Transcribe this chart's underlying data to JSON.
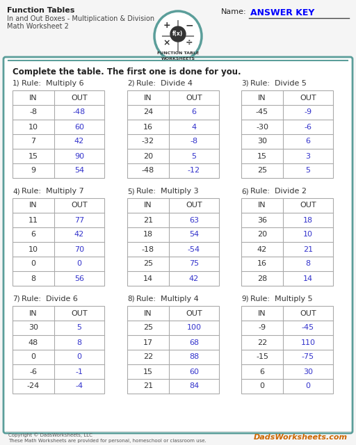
{
  "title_line1": "Function Tables",
  "title_line2": "In and Out Boxes - Multiplication & Division",
  "title_line3": "Math Worksheet 2",
  "name_label": "Name:",
  "answer_key": "ANSWER KEY",
  "instruction": "Complete the table. The first one is done for you.",
  "bg_color": "#f5f5f5",
  "border_color": "#5b9e9a",
  "tables": [
    {
      "num": "1)",
      "rule": "Rule:  Multiply 6",
      "in_vals": [
        "-8",
        "10",
        "7",
        "15",
        "9"
      ],
      "out_vals": [
        "-48",
        "60",
        "42",
        "90",
        "54"
      ],
      "out_colors": [
        "#3333cc",
        "#3333cc",
        "#3333cc",
        "#3333cc",
        "#3333cc"
      ]
    },
    {
      "num": "2)",
      "rule": "Rule:  Divide 4",
      "in_vals": [
        "24",
        "16",
        "-32",
        "20",
        "-48"
      ],
      "out_vals": [
        "6",
        "4",
        "-8",
        "5",
        "-12"
      ],
      "out_colors": [
        "#3333cc",
        "#3333cc",
        "#3333cc",
        "#3333cc",
        "#3333cc"
      ]
    },
    {
      "num": "3)",
      "rule": "Rule:  Divide 5",
      "in_vals": [
        "-45",
        "-30",
        "30",
        "15",
        "25"
      ],
      "out_vals": [
        "-9",
        "-6",
        "6",
        "3",
        "5"
      ],
      "out_colors": [
        "#3333cc",
        "#3333cc",
        "#3333cc",
        "#3333cc",
        "#3333cc"
      ]
    },
    {
      "num": "4)",
      "rule": "Rule:  Multiply 7",
      "in_vals": [
        "11",
        "6",
        "10",
        "0",
        "8"
      ],
      "out_vals": [
        "77",
        "42",
        "70",
        "0",
        "56"
      ],
      "out_colors": [
        "#3333cc",
        "#3333cc",
        "#3333cc",
        "#3333cc",
        "#3333cc"
      ]
    },
    {
      "num": "5)",
      "rule": "Rule:  Multiply 3",
      "in_vals": [
        "21",
        "18",
        "-18",
        "25",
        "14"
      ],
      "out_vals": [
        "63",
        "54",
        "-54",
        "75",
        "42"
      ],
      "out_colors": [
        "#3333cc",
        "#3333cc",
        "#3333cc",
        "#3333cc",
        "#3333cc"
      ]
    },
    {
      "num": "6)",
      "rule": "Rule:  Divide 2",
      "in_vals": [
        "36",
        "20",
        "42",
        "16",
        "28"
      ],
      "out_vals": [
        "18",
        "10",
        "21",
        "8",
        "14"
      ],
      "out_colors": [
        "#3333cc",
        "#3333cc",
        "#3333cc",
        "#3333cc",
        "#3333cc"
      ]
    },
    {
      "num": "7)",
      "rule": "Rule:  Divide 6",
      "in_vals": [
        "30",
        "48",
        "0",
        "-6",
        "-24"
      ],
      "out_vals": [
        "5",
        "8",
        "0",
        "-1",
        "-4"
      ],
      "out_colors": [
        "#3333cc",
        "#3333cc",
        "#3333cc",
        "#3333cc",
        "#3333cc"
      ]
    },
    {
      "num": "8)",
      "rule": "Rule:  Multiply 4",
      "in_vals": [
        "25",
        "17",
        "22",
        "15",
        "21"
      ],
      "out_vals": [
        "100",
        "68",
        "88",
        "60",
        "84"
      ],
      "out_colors": [
        "#3333cc",
        "#3333cc",
        "#3333cc",
        "#3333cc",
        "#3333cc"
      ]
    },
    {
      "num": "9)",
      "rule": "Rule:  Multiply 5",
      "in_vals": [
        "-9",
        "22",
        "-15",
        "6",
        "0"
      ],
      "out_vals": [
        "-45",
        "110",
        "-75",
        "30",
        "0"
      ],
      "out_colors": [
        "#3333cc",
        "#3333cc",
        "#3333cc",
        "#3333cc",
        "#3333cc"
      ]
    }
  ],
  "footer_left1": "Copyright © DadsWorksheets, LLC",
  "footer_left2": "These Math Worksheets are provided for personal, homeschool or classroom use.",
  "footer_right": "DadsWorksheets.com"
}
